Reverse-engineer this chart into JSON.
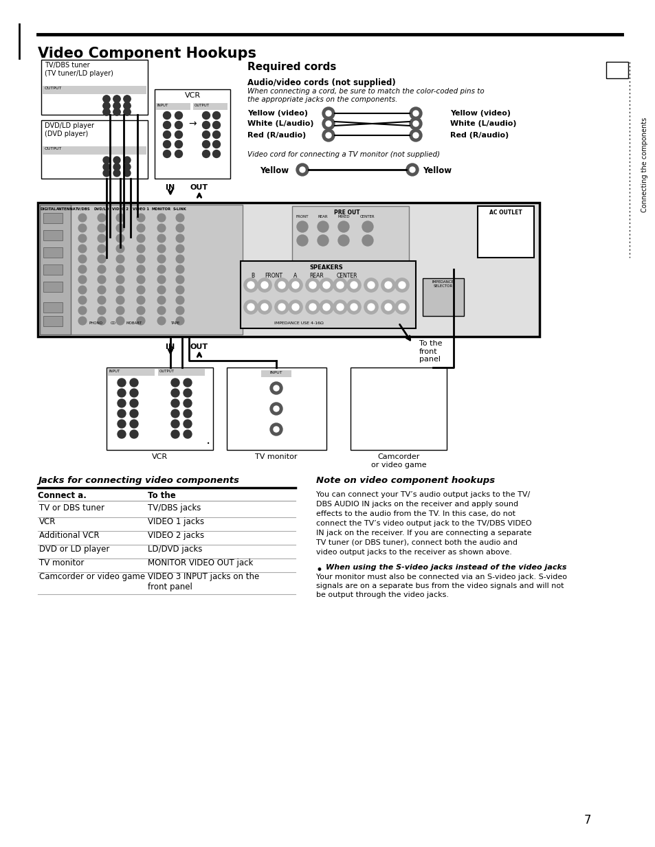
{
  "title": "Video Component Hookups",
  "page_number": "7",
  "background_color": "#ffffff",
  "title_color": "#000000",
  "title_fontsize": 15,
  "required_cords_title": "Required cords",
  "av_cords_subtitle": "Audio/video cords (not supplied)",
  "av_cords_desc1": "When connecting a cord, be sure to match the color-coded pins to",
  "av_cords_desc2": "the appropriate jacks on the components.",
  "cord_labels_left": [
    "Yellow (video)",
    "White (L/audio)",
    "Red (R/audio)"
  ],
  "cord_labels_right": [
    "Yellow (video)",
    "White (L/audio)",
    "Red (R/audio)"
  ],
  "video_cord_title": "Video cord for connecting a TV monitor (not supplied)",
  "video_cord_label": "Yellow",
  "jacks_section_title": "Jacks for connecting video components",
  "table_col1_header": "Connect a.",
  "table_col2_header": "To the",
  "table_rows": [
    [
      "TV or DBS tuner",
      "TV/DBS jacks"
    ],
    [
      "VCR",
      "VIDEO 1 jacks"
    ],
    [
      "Additional VCR",
      "VIDEO 2 jacks"
    ],
    [
      "DVD or LD player",
      "LD/DVD jacks"
    ],
    [
      "TV monitor",
      "MONITOR VIDEO OUT jack"
    ],
    [
      "Camcorder or video game",
      "VIDEO 3 INPUT jacks on the\nfront panel"
    ]
  ],
  "note_title": "Note on video component hookups",
  "note_text1": "You can connect your TV’s audio output jacks to the TV/",
  "note_text2": "DBS AUDIO IN jacks on the receiver and apply sound",
  "note_text3": "effects to the audio from the TV. In this case, do not",
  "note_text4": "connect the TV’s video output jack to the TV/DBS VIDEO",
  "note_text5": "IN jack on the receiver. If you are connecting a separate",
  "note_text6": "TV tuner (or DBS tuner), connect both the audio and",
  "note_text7": "video output jacks to the receiver as shown above.",
  "tip_bold": "When using the S-video jacks instead of the video jacks",
  "tip_text1": "Your monitor must also be connected via an S-video jack. S-video",
  "tip_text2": "signals are on a separate bus from the video signals and will not",
  "tip_text3": "be output through the video jacks.",
  "diagram_labels": {
    "tv_dbs": "TV/DBS tuner\n(TV tuner/LD player)",
    "dvd_ld": "DVD/LD player\n(DVD player)",
    "vcr_top": "VCR",
    "vcr_bottom": "VCR",
    "tv_monitor": "TV monitor",
    "camcorder": "Camcorder\nor video game",
    "in_label": "IN",
    "out_label": "OUT",
    "to_front": "To the\nfront\npanel",
    "output": "OUTPUT"
  },
  "sidebar_text": "Connecting the components"
}
